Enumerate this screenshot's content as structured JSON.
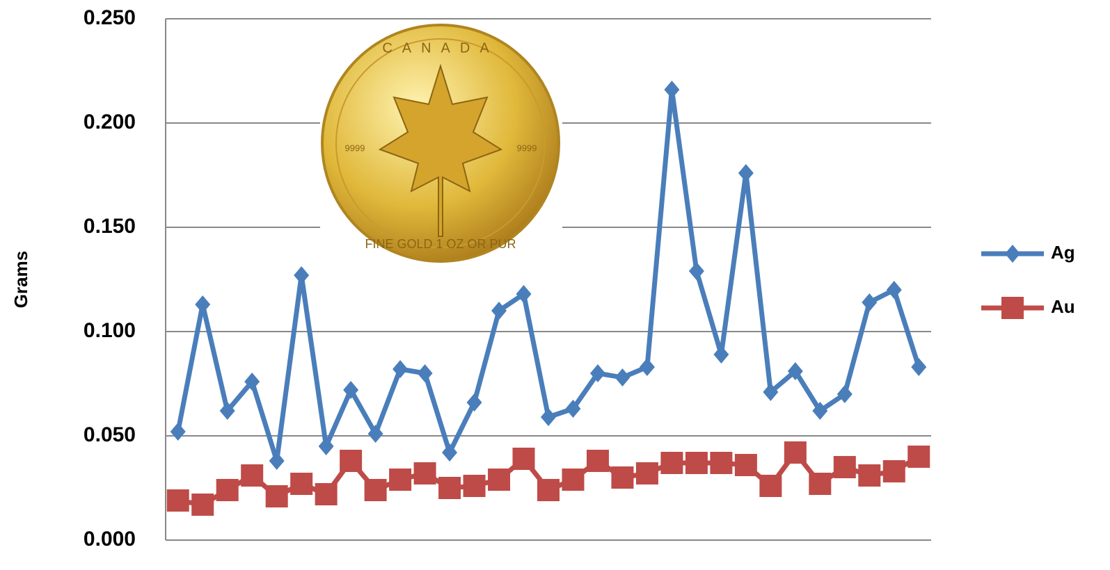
{
  "chart_data": {
    "type": "line",
    "y_label": "Grams",
    "categories": [
      null,
      null,
      null,
      null,
      null,
      null,
      null,
      null,
      null,
      null,
      null,
      null,
      null,
      null,
      null,
      null,
      null,
      null,
      null,
      null,
      null,
      null,
      null,
      null,
      null,
      null,
      null,
      null,
      null,
      null,
      null
    ],
    "series": [
      {
        "name": "Ag",
        "color": "#4a7ebb",
        "marker": "diamond",
        "values": [
          0.052,
          0.113,
          0.062,
          0.076,
          0.038,
          0.127,
          0.045,
          0.072,
          0.051,
          0.082,
          0.08,
          0.042,
          0.066,
          0.11,
          0.118,
          0.059,
          0.063,
          0.08,
          0.078,
          0.083,
          0.216,
          0.129,
          0.089,
          0.176,
          0.071,
          0.081,
          0.062,
          0.07,
          0.114,
          0.12,
          0.083
        ]
      },
      {
        "name": "Au",
        "color": "#be4b48",
        "marker": "square",
        "values": [
          0.019,
          0.017,
          0.024,
          0.031,
          0.021,
          0.027,
          0.022,
          0.038,
          0.024,
          0.029,
          0.032,
          0.025,
          0.026,
          0.029,
          0.039,
          0.024,
          0.029,
          0.038,
          0.03,
          0.032,
          0.037,
          0.037,
          0.037,
          0.036,
          0.026,
          0.042,
          0.027,
          0.035,
          0.031,
          0.033,
          0.04
        ]
      }
    ],
    "ylim": [
      0,
      0.25
    ],
    "yticks": [
      {
        "value": 0,
        "label": "0.000"
      },
      {
        "value": 0.05,
        "label": "0.050"
      },
      {
        "value": 0.1,
        "label": "0.100"
      },
      {
        "value": 0.15,
        "label": "0.150"
      },
      {
        "value": 0.2,
        "label": "0.200"
      },
      {
        "value": 0.25,
        "label": "0.250"
      }
    ],
    "grid": true,
    "legend": "right",
    "coin_text": {
      "top": "CANADA",
      "left_mark": "9999",
      "right_mark": "9999",
      "bottom": "FINE GOLD 1 OZ OR PUR"
    }
  }
}
